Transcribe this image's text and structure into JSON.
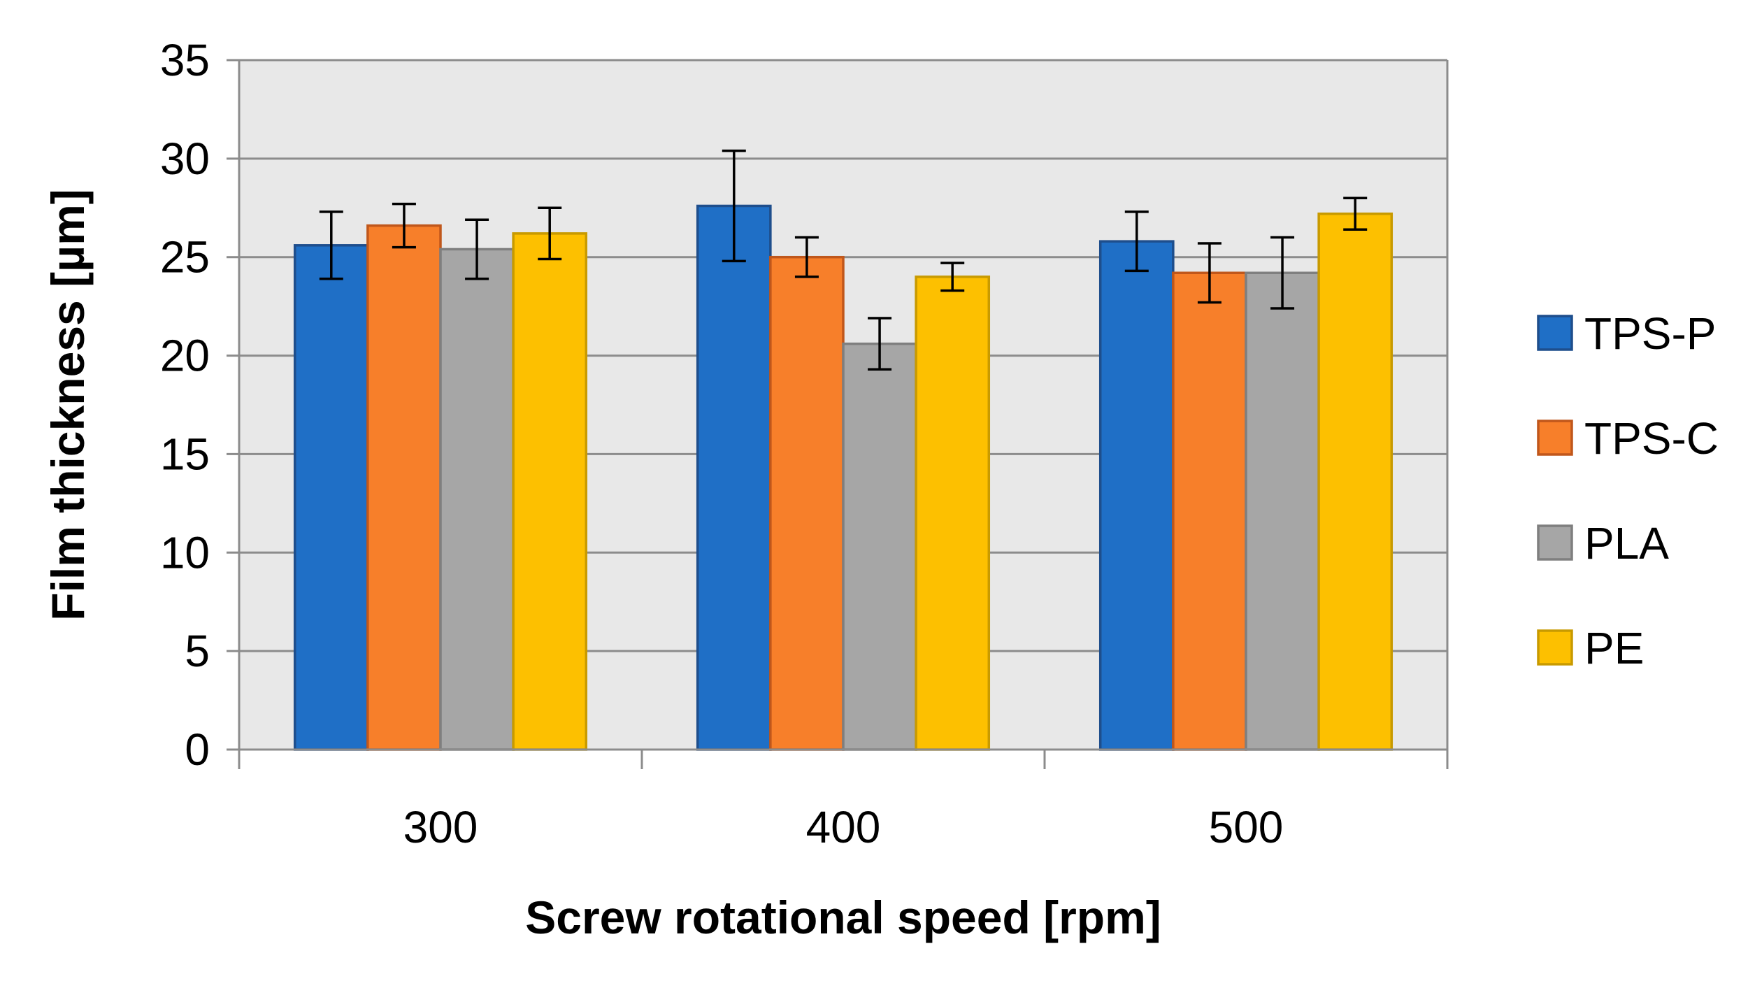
{
  "chart_data": {
    "type": "bar",
    "title": "",
    "xlabel": "Screw rotational speed [rpm]",
    "ylabel": "Film thickness [µm]",
    "categories": [
      "300",
      "400",
      "500"
    ],
    "ylim": [
      0,
      35
    ],
    "yticks": [
      0,
      5,
      10,
      15,
      20,
      25,
      30,
      35
    ],
    "grid": true,
    "legend_position": "right",
    "series": [
      {
        "name": "TPS-P",
        "color": "#1F6FC6",
        "stroke": "#1E4E8C",
        "values": [
          25.6,
          27.6,
          25.8
        ],
        "errors": [
          1.7,
          2.8,
          1.5
        ]
      },
      {
        "name": "TPS-C",
        "color": "#F77F2A",
        "stroke": "#C0571B",
        "values": [
          26.6,
          25.0,
          24.2
        ],
        "errors": [
          1.1,
          1.0,
          1.5
        ]
      },
      {
        "name": "PLA",
        "color": "#A6A6A6",
        "stroke": "#7F7F7F",
        "values": [
          25.4,
          20.6,
          24.2
        ],
        "errors": [
          1.5,
          1.3,
          1.8
        ]
      },
      {
        "name": "PE",
        "color": "#FDC000",
        "stroke": "#C89A00",
        "values": [
          26.2,
          24.0,
          27.2
        ],
        "errors": [
          1.3,
          0.7,
          0.8
        ]
      }
    ]
  }
}
